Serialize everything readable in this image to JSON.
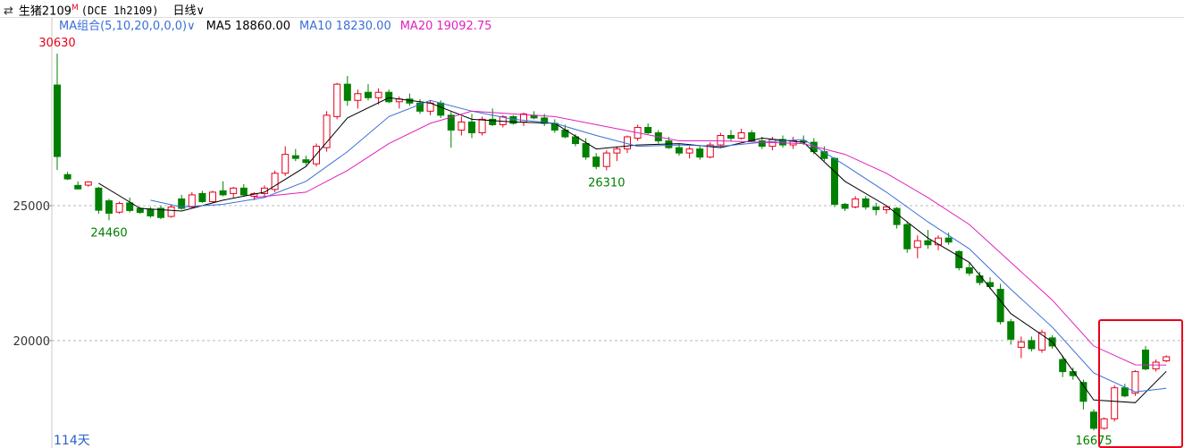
{
  "chart_data": {
    "type": "candlestick",
    "symbol": "生猪2109",
    "symbol_mark": "M",
    "exchange": "(DCE 1h2109)",
    "period": "日线∨",
    "ma_group": "MA组合(5,10,20,0,0,0)∨",
    "day_count": "114天",
    "up_color": "#e8001c",
    "down_color": "#008000",
    "ylim": [
      16020,
      32620
    ],
    "yticks": [
      20000,
      25000
    ],
    "grid": true,
    "open": [
      29470,
      26150,
      25750,
      25760,
      25650,
      25180,
      24760,
      25100,
      24900,
      24850,
      24900,
      24600,
      25250,
      24950,
      25450,
      25150,
      25550,
      25450,
      25650,
      25350,
      25450,
      25600,
      26200,
      26850,
      26700,
      26550,
      27150,
      28300,
      29500,
      28900,
      29200,
      29000,
      29200,
      28850,
      28950,
      28800,
      28500,
      28800,
      28350,
      27800,
      28100,
      27700,
      28200,
      28000,
      28300,
      28100,
      28350,
      28250,
      28050,
      27800,
      27550,
      27300,
      26800,
      26450,
      26950,
      27100,
      27500,
      27900,
      27700,
      27400,
      27150,
      26950,
      27100,
      26800,
      27250,
      27600,
      27500,
      27700,
      27400,
      27200,
      27450,
      27250,
      27400,
      27350,
      27000,
      26750,
      25050,
      24950,
      25250,
      24950,
      24850,
      24900,
      24300,
      23450,
      23700,
      23550,
      23800,
      23300,
      22700,
      22400,
      22150,
      21900,
      20700,
      19750,
      20000,
      19650,
      20100,
      19300,
      18850,
      18450,
      17350,
      16750,
      17100,
      18250,
      18050,
      19650,
      18950,
      19250
    ],
    "high": [
      30630,
      26250,
      25900,
      25900,
      25700,
      25250,
      25150,
      25300,
      24950,
      24950,
      25000,
      25050,
      25400,
      25500,
      25550,
      25550,
      25900,
      25700,
      25800,
      25500,
      25750,
      26300,
      27200,
      27100,
      26850,
      27300,
      28500,
      29550,
      29805,
      29300,
      29500,
      29350,
      29300,
      29050,
      29150,
      28950,
      28900,
      28900,
      28500,
      28300,
      28400,
      28300,
      28600,
      28350,
      28350,
      28450,
      28500,
      28400,
      28200,
      28000,
      27650,
      27500,
      26950,
      27050,
      27200,
      27600,
      28000,
      28050,
      27800,
      27550,
      27300,
      27200,
      27200,
      27350,
      27700,
      27800,
      27850,
      27800,
      27550,
      27550,
      27600,
      27550,
      27600,
      27500,
      27200,
      26800,
      25100,
      25350,
      25350,
      25100,
      25000,
      24950,
      24400,
      23900,
      24100,
      23900,
      24000,
      23350,
      22900,
      22550,
      22350,
      22100,
      20800,
      20150,
      20150,
      20400,
      20200,
      19450,
      19000,
      18550,
      17450,
      17150,
      18350,
      18400,
      18900,
      19800,
      19300,
      19450
    ],
    "low": [
      26320,
      25950,
      25600,
      25700,
      24700,
      24460,
      24700,
      24750,
      24700,
      24550,
      24500,
      24550,
      24850,
      24900,
      25100,
      25100,
      25350,
      25300,
      25350,
      25200,
      25300,
      25500,
      26100,
      26650,
      26500,
      26450,
      27000,
      28200,
      28700,
      28600,
      28900,
      28750,
      28800,
      28600,
      28700,
      28400,
      28350,
      28250,
      27150,
      27600,
      27500,
      27600,
      27950,
      27900,
      28000,
      27950,
      28200,
      27950,
      27700,
      27500,
      27200,
      26700,
      26350,
      26310,
      26650,
      26950,
      27400,
      27650,
      27300,
      27100,
      26850,
      26750,
      26700,
      26750,
      27150,
      27400,
      27450,
      27350,
      27100,
      27050,
      27150,
      27100,
      27250,
      26900,
      26650,
      24950,
      24800,
      24900,
      24850,
      24650,
      24700,
      24150,
      23250,
      23050,
      23400,
      23350,
      23550,
      22600,
      22400,
      22050,
      21900,
      20600,
      19850,
      19350,
      19600,
      19550,
      19700,
      18650,
      18550,
      17450,
      16675,
      16700,
      17000,
      17900,
      17950,
      18900,
      18850,
      19200
    ],
    "close": [
      26820,
      25990,
      25620,
      25880,
      24830,
      24720,
      25080,
      24820,
      24750,
      24620,
      24560,
      24950,
      24900,
      25400,
      25150,
      25500,
      25400,
      25650,
      25400,
      25450,
      25650,
      26200,
      26900,
      26750,
      26600,
      27200,
      28350,
      29500,
      28900,
      29150,
      29000,
      29200,
      28850,
      28950,
      28800,
      28500,
      28800,
      28350,
      27800,
      28100,
      27700,
      28200,
      28000,
      28300,
      28050,
      28400,
      28250,
      28050,
      27800,
      27550,
      27300,
      26800,
      26450,
      26950,
      27100,
      27550,
      27900,
      27700,
      27400,
      27150,
      26950,
      27100,
      26800,
      27250,
      27600,
      27500,
      27700,
      27400,
      27200,
      27450,
      27250,
      27400,
      27350,
      27000,
      26750,
      25050,
      24900,
      25250,
      24950,
      24850,
      24950,
      24300,
      23400,
      23700,
      23550,
      23800,
      23650,
      22700,
      22500,
      22150,
      22000,
      20700,
      20050,
      19950,
      19700,
      20300,
      19800,
      18850,
      18700,
      17750,
      16750,
      17100,
      18250,
      17950,
      18850,
      18950,
      19200,
      19400
    ],
    "series": [
      {
        "name": "MA5",
        "value": "18860.00",
        "color": "#000000",
        "x": [
          4,
          8,
          12,
          16,
          20,
          24,
          28,
          32,
          36,
          40,
          44,
          48,
          52,
          56,
          60,
          64,
          68,
          72,
          76,
          80,
          84,
          88,
          92,
          96,
          100,
          104,
          107
        ],
        "values": [
          25830,
          24900,
          24800,
          25200,
          25500,
          26450,
          28250,
          29000,
          28800,
          28200,
          28100,
          28050,
          27100,
          27250,
          27300,
          27150,
          27500,
          27350,
          25900,
          25000,
          23800,
          22900,
          21000,
          19950,
          17800,
          17700,
          18860
        ]
      },
      {
        "name": "MA10",
        "value": "18230.00",
        "color": "#3a6fd8",
        "x": [
          9,
          12,
          16,
          20,
          24,
          28,
          32,
          36,
          40,
          44,
          48,
          52,
          56,
          60,
          64,
          68,
          72,
          76,
          80,
          84,
          88,
          92,
          96,
          100,
          104,
          107
        ],
        "values": [
          25200,
          24950,
          25050,
          25300,
          25900,
          27000,
          28300,
          28900,
          28500,
          28200,
          28050,
          27600,
          27200,
          27250,
          27200,
          27350,
          27450,
          26500,
          25500,
          24400,
          23400,
          21900,
          20500,
          18800,
          18100,
          18230
        ]
      },
      {
        "name": "MA20",
        "value": "19092.75",
        "color": "#e020c0",
        "x": [
          19,
          24,
          28,
          32,
          36,
          40,
          44,
          48,
          52,
          56,
          60,
          64,
          68,
          72,
          76,
          80,
          84,
          88,
          92,
          96,
          100,
          104,
          107
        ],
        "values": [
          25300,
          25500,
          26300,
          27300,
          28050,
          28500,
          28400,
          28300,
          28000,
          27700,
          27400,
          27400,
          27350,
          27300,
          26900,
          26200,
          25300,
          24300,
          22900,
          21500,
          19800,
          19100,
          19092.75
        ]
      }
    ]
  }
}
